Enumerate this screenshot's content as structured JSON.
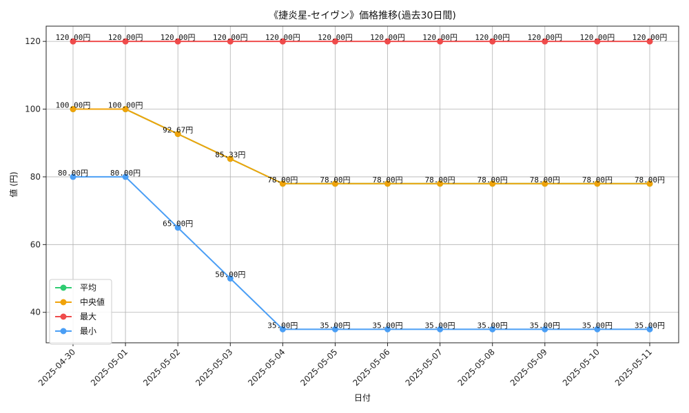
{
  "chart_data": {
    "type": "line",
    "title": "《捷炎星-セイヴン》価格推移(過去30日間)",
    "xlabel": "日付",
    "ylabel": "値 (円)",
    "x": [
      "2025-04-30",
      "2025-05-01",
      "2025-05-02",
      "2025-05-03",
      "2025-05-04",
      "2025-05-05",
      "2025-05-06",
      "2025-05-07",
      "2025-05-08",
      "2025-05-09",
      "2025-05-10",
      "2025-05-11"
    ],
    "ylim": [
      31,
      124.5
    ],
    "yticks": [
      40,
      60,
      80,
      100,
      120
    ],
    "grid": true,
    "legend_position": "lower-left",
    "value_suffix": "円",
    "series": [
      {
        "name": "平均",
        "color": "#2ecc71",
        "values": [
          100,
          100,
          92.67,
          85.33,
          78,
          78,
          78,
          78,
          78,
          78,
          78,
          78
        ],
        "show_labels": false
      },
      {
        "name": "中央値",
        "color": "#f0a30a",
        "values": [
          100,
          100,
          92.67,
          85.33,
          78,
          78,
          78,
          78,
          78,
          78,
          78,
          78
        ],
        "show_labels": true
      },
      {
        "name": "最大",
        "color": "#ef4b4b",
        "values": [
          120,
          120,
          120,
          120,
          120,
          120,
          120,
          120,
          120,
          120,
          120,
          120
        ],
        "show_labels": true
      },
      {
        "name": "最小",
        "color": "#4a9ef5",
        "values": [
          80,
          80,
          65,
          50,
          35,
          35,
          35,
          35,
          35,
          35,
          35,
          35
        ],
        "show_labels": true
      }
    ]
  }
}
